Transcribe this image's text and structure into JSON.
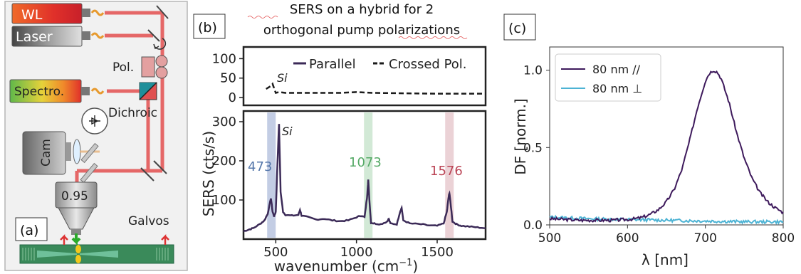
{
  "panel_a": {
    "tag": "(a)",
    "wl_label": "WL",
    "laser_label": "Laser",
    "pol_label": "Pol.",
    "spectro_label": "Spectro.",
    "dichroic_label": "Dichroic",
    "cam_label": "Cam",
    "objective_label": "0.95",
    "galvos_label": "Galvos"
  },
  "panel_b": {
    "tag": "(b)",
    "title_line1": "SERS on a hybrid for 2",
    "title_line2": "orthogonal pump polarizations",
    "ylabel": "SERS (cts/s)",
    "xlabel_main": "wavenumber (cm",
    "xlabel_sup": "−1",
    "xlabel_close": ")",
    "legend_parallel": "Parallel",
    "legend_crossed": "Crossed Pol.",
    "si_top": "Si",
    "si_bottom": "Si",
    "peak_473": "473",
    "peak_1073": "1073",
    "peak_1576": "1576",
    "colors": {
      "trace": "#3b2a57",
      "band_473": "#a9b8d8",
      "band_1073": "#bfe0c4",
      "band_1576": "#e3bfc4",
      "label_473": "#5577aa",
      "label_1073": "#55aa66",
      "label_1576": "#bb4455"
    }
  },
  "panel_c": {
    "tag": "(c)",
    "ylabel": "DF [norm.]",
    "xlabel": "λ [nm]",
    "legend_1": "80 nm //",
    "legend_2": "80 nm ⊥",
    "colors": {
      "s1": "#3e1a5c",
      "s2": "#4db3d4"
    }
  },
  "chart_data": [
    {
      "type": "line",
      "panel": "b-top",
      "ylim": [
        -20,
        130
      ],
      "yticks": [
        "0",
        "50",
        "100"
      ],
      "series": [
        {
          "name": "Parallel",
          "x": [],
          "y": []
        },
        {
          "name": "Crossed Pol.",
          "x": [
            440,
            470,
            480,
            500,
            520,
            560,
            700,
            900,
            1000,
            1100,
            1300,
            1500,
            1700,
            1800
          ],
          "y": [
            22,
            30,
            35,
            12,
            14,
            12,
            12,
            12,
            14,
            12,
            11,
            10,
            10,
            10
          ]
        }
      ]
    },
    {
      "type": "line",
      "panel": "b-bottom",
      "xlim": [
        300,
        1800
      ],
      "ylim": [
        0,
        320
      ],
      "xticks": [
        "500",
        "1000",
        "1500"
      ],
      "yticks": [
        "100",
        "200",
        "300"
      ],
      "series": [
        {
          "name": "Parallel",
          "x": [
            300,
            330,
            360,
            400,
            430,
            450,
            470,
            480,
            490,
            500,
            510,
            520,
            530,
            545,
            560,
            600,
            640,
            650,
            660,
            700,
            750,
            800,
            850,
            900,
            950,
            1000,
            1030,
            1050,
            1065,
            1073,
            1080,
            1090,
            1110,
            1150,
            1190,
            1200,
            1210,
            1250,
            1270,
            1280,
            1290,
            1330,
            1400,
            1450,
            1500,
            1540,
            1560,
            1570,
            1576,
            1582,
            1595,
            1620,
            1650,
            1700,
            1750,
            1800
          ],
          "y": [
            20,
            24,
            28,
            38,
            48,
            65,
            105,
            70,
            58,
            70,
            190,
            295,
            120,
            70,
            62,
            60,
            62,
            75,
            60,
            56,
            50,
            52,
            48,
            46,
            48,
            56,
            60,
            56,
            105,
            152,
            100,
            42,
            40,
            38,
            45,
            52,
            40,
            38,
            70,
            80,
            48,
            40,
            38,
            35,
            34,
            40,
            70,
            105,
            118,
            96,
            45,
            38,
            34,
            32,
            30,
            28
          ]
        }
      ],
      "bands": [
        473,
        1073,
        1576
      ]
    },
    {
      "type": "line",
      "panel": "c",
      "xlim": [
        500,
        800
      ],
      "ylim": [
        0,
        1.15
      ],
      "xticks": [
        "500",
        "600",
        "700",
        "800"
      ],
      "yticks": [
        "0.0",
        "0.5",
        "1.0"
      ],
      "series": [
        {
          "name": "80 nm //",
          "x": [
            500,
            520,
            540,
            560,
            580,
            600,
            610,
            620,
            630,
            640,
            650,
            660,
            670,
            680,
            690,
            700,
            705,
            710,
            715,
            720,
            730,
            740,
            750,
            760,
            770,
            780,
            790,
            800
          ],
          "y": [
            0.04,
            0.035,
            0.03,
            0.03,
            0.03,
            0.035,
            0.04,
            0.05,
            0.07,
            0.1,
            0.15,
            0.23,
            0.36,
            0.55,
            0.76,
            0.93,
            0.98,
            1.0,
            0.99,
            0.95,
            0.8,
            0.6,
            0.43,
            0.3,
            0.21,
            0.15,
            0.11,
            0.08
          ]
        },
        {
          "name": "80 nm ⊥",
          "x": [
            500,
            550,
            600,
            650,
            700,
            750,
            800
          ],
          "y": [
            0.05,
            0.04,
            0.035,
            0.03,
            0.025,
            0.02,
            0.02
          ]
        }
      ]
    }
  ]
}
